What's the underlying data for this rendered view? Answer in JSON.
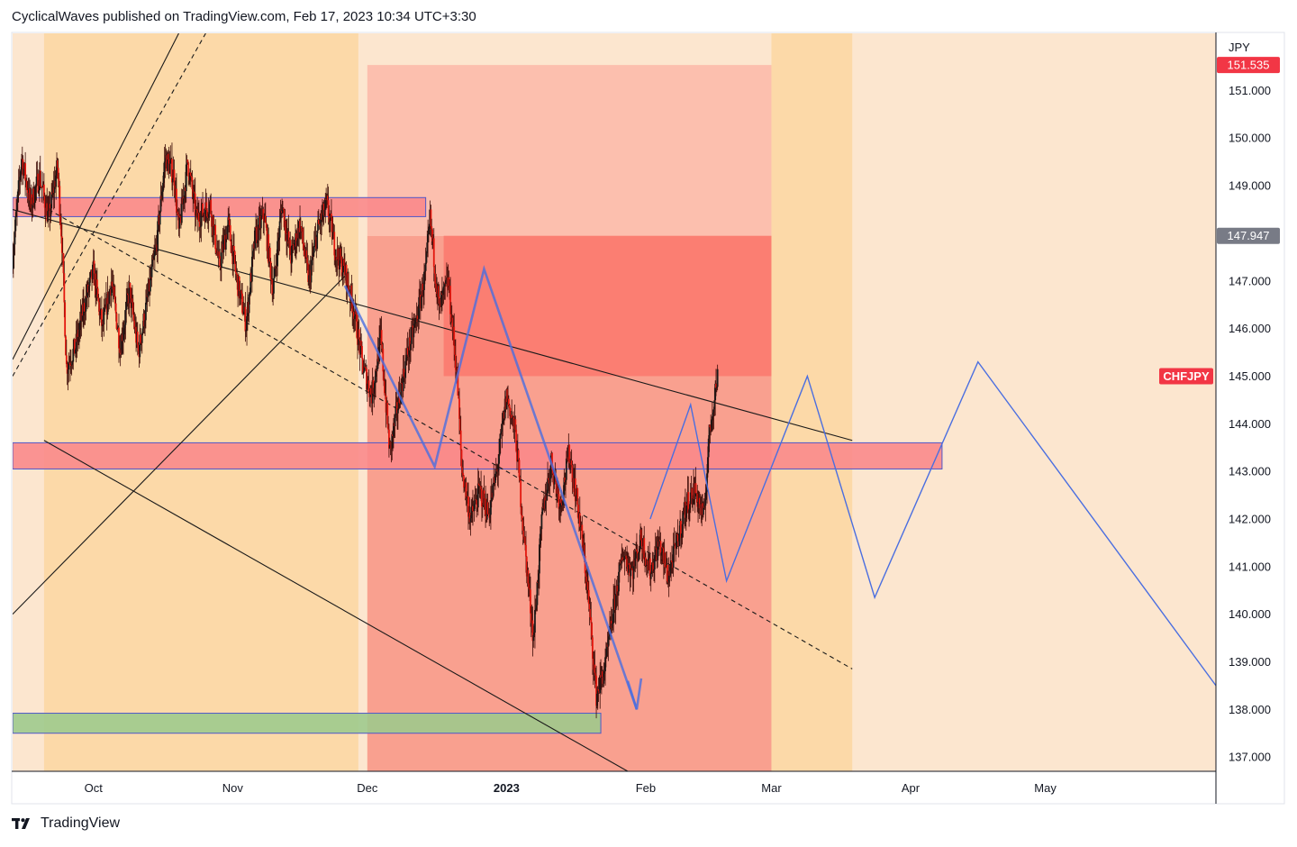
{
  "header": {
    "publisher": "CyclicalWaves",
    "text": "published on TradingView.com, Feb 17, 2023 10:34 UTC+3:30"
  },
  "footer": {
    "brand": "TradingView",
    "logo_icon": "tradingview-logo-icon"
  },
  "colors": {
    "background": "#fce6cf",
    "zone_orange": "#fcd9a8",
    "zone_pink": "#f9a08f",
    "zone_red": "#fb7e72",
    "zone_light_red": "#fcbfae",
    "band_red": "#f9888a",
    "band_green": "#9cc98c",
    "band_border": "#4f57c8",
    "candle": "#e3170e",
    "projection": "#4a6ee0",
    "channel": "#1a1a1a",
    "badge_red": "#f23645",
    "badge_gray": "#787b86"
  },
  "chart_data": {
    "type": "candlestick",
    "symbol": "CHFJPY",
    "currency": "JPY",
    "y_range": [
      136.7,
      152.2
    ],
    "x_range": [
      "2022-09-13",
      "2023-06-08"
    ],
    "y_ticks": [
      "137.000",
      "138.000",
      "139.000",
      "140.000",
      "141.000",
      "142.000",
      "143.000",
      "144.000",
      "145.000",
      "146.000",
      "147.000",
      "148.000",
      "149.000",
      "150.000",
      "151.000"
    ],
    "x_ticks": [
      {
        "label": "Oct",
        "date": "2022-10-01",
        "bold": false
      },
      {
        "label": "Nov",
        "date": "2022-11-01",
        "bold": false
      },
      {
        "label": "Dec",
        "date": "2022-12-01",
        "bold": false
      },
      {
        "label": "2023",
        "date": "2023-01-01",
        "bold": true
      },
      {
        "label": "Feb",
        "date": "2023-02-01",
        "bold": false
      },
      {
        "label": "Mar",
        "date": "2023-03-01",
        "bold": false
      },
      {
        "label": "Apr",
        "date": "2023-04-01",
        "bold": false
      },
      {
        "label": "May",
        "date": "2023-05-01",
        "bold": false
      }
    ],
    "price_badges": [
      {
        "label": "151.535",
        "price": 151.535,
        "style": "red"
      },
      {
        "label": "147.947",
        "price": 147.947,
        "style": "gray"
      },
      {
        "label": "CHFJPY",
        "price": 145.0,
        "style": "symbol"
      }
    ],
    "zones": [
      {
        "from": "2022-09-20",
        "to": "2022-11-29",
        "low": 136.7,
        "high": 152.2,
        "color": "zone_orange"
      },
      {
        "from": "2022-12-01",
        "to": "2023-03-01",
        "low": 136.7,
        "high": 147.947,
        "color": "zone_pink"
      },
      {
        "from": "2022-12-01",
        "to": "2023-03-01",
        "low": 147.947,
        "high": 151.535,
        "color": "zone_light_red"
      },
      {
        "from": "2022-12-18",
        "to": "2023-03-01",
        "low": 145.0,
        "high": 147.947,
        "color": "zone_red"
      },
      {
        "from": "2023-03-01",
        "to": "2023-03-19",
        "low": 136.7,
        "high": 152.2,
        "color": "zone_orange"
      }
    ],
    "bands": [
      {
        "from": "2022-09-13",
        "to": "2022-12-14",
        "low": 148.35,
        "high": 148.75,
        "color": "band_red"
      },
      {
        "from": "2022-09-13",
        "to": "2023-04-08",
        "low": 143.05,
        "high": 143.6,
        "color": "band_red"
      },
      {
        "from": "2022-09-13",
        "to": "2023-01-22",
        "low": 137.5,
        "high": 137.92,
        "color": "band_green"
      }
    ],
    "channel_lines": [
      {
        "from": [
          "2022-09-13",
          148.5
        ],
        "to": [
          "2023-03-19",
          143.65
        ],
        "style": "solid"
      },
      {
        "from": [
          "2022-09-20",
          143.65
        ],
        "to": [
          "2023-01-28",
          136.7
        ],
        "style": "solid"
      },
      {
        "from": [
          "2022-09-13",
          140.0
        ],
        "to": [
          "2022-11-26",
          147.1
        ],
        "style": "solid"
      },
      {
        "from": [
          "2022-09-13",
          145.35
        ],
        "to": [
          "2022-10-20",
          152.2
        ],
        "style": "solid"
      },
      {
        "from": [
          "2022-09-13",
          145.0
        ],
        "to": [
          "2022-10-26",
          152.2
        ],
        "style": "dashed"
      },
      {
        "from": [
          "2022-09-21",
          148.5
        ],
        "to": [
          "2023-03-19",
          138.85
        ],
        "style": "dashed"
      }
    ],
    "projection_path": [
      [
        "2022-11-26",
        146.9
      ],
      [
        "2022-12-16",
        143.1
      ],
      [
        "2022-12-27",
        147.25
      ],
      [
        "2023-01-30",
        138.0
      ]
    ],
    "projection_arrow_head": [
      [
        "2023-01-28",
        138.6
      ],
      [
        "2023-01-30",
        138.0
      ],
      [
        "2023-01-31",
        138.65
      ]
    ],
    "forecast_wave": [
      [
        "2023-02-02",
        142.0
      ],
      [
        "2023-02-11",
        144.4
      ],
      [
        "2023-02-19",
        140.7
      ],
      [
        "2023-03-09",
        145.0
      ],
      [
        "2023-03-24",
        140.35
      ],
      [
        "2023-04-16",
        145.3
      ],
      [
        "2023-06-08",
        138.5
      ]
    ],
    "candle_range": {
      "from": "2022-09-13",
      "to": "2023-02-17"
    },
    "price_path": [
      [
        "2022-09-13",
        147.5
      ],
      [
        "2022-09-15",
        149.6
      ],
      [
        "2022-09-17",
        148.6
      ],
      [
        "2022-09-19",
        149.2
      ],
      [
        "2022-09-21",
        148.3
      ],
      [
        "2022-09-23",
        149.4
      ],
      [
        "2022-09-24",
        147.8
      ],
      [
        "2022-09-25",
        145.2
      ],
      [
        "2022-09-27",
        145.6
      ],
      [
        "2022-09-29",
        146.5
      ],
      [
        "2022-10-01",
        147.2
      ],
      [
        "2022-10-03",
        146.0
      ],
      [
        "2022-10-05",
        147.0
      ],
      [
        "2022-10-07",
        145.6
      ],
      [
        "2022-10-09",
        146.8
      ],
      [
        "2022-10-11",
        145.5
      ],
      [
        "2022-10-13",
        146.6
      ],
      [
        "2022-10-15",
        147.7
      ],
      [
        "2022-10-17",
        149.6
      ],
      [
        "2022-10-19",
        149.2
      ],
      [
        "2022-10-20",
        148.0
      ],
      [
        "2022-10-22",
        149.5
      ],
      [
        "2022-10-24",
        148.3
      ],
      [
        "2022-10-27",
        148.6
      ],
      [
        "2022-10-29",
        147.3
      ],
      [
        "2022-10-31",
        148.2
      ],
      [
        "2022-11-02",
        147.0
      ],
      [
        "2022-11-04",
        146.1
      ],
      [
        "2022-11-06",
        147.9
      ],
      [
        "2022-11-08",
        148.4
      ],
      [
        "2022-11-10",
        146.8
      ],
      [
        "2022-11-12",
        148.6
      ],
      [
        "2022-11-14",
        147.5
      ],
      [
        "2022-11-16",
        148.2
      ],
      [
        "2022-11-18",
        147.0
      ],
      [
        "2022-11-20",
        148.1
      ],
      [
        "2022-11-22",
        148.6
      ],
      [
        "2022-11-24",
        147.6
      ],
      [
        "2022-11-26",
        147.2
      ],
      [
        "2022-11-28",
        146.4
      ],
      [
        "2022-11-30",
        145.2
      ],
      [
        "2022-12-02",
        144.6
      ],
      [
        "2022-12-04",
        145.8
      ],
      [
        "2022-12-06",
        143.4
      ],
      [
        "2022-12-08",
        144.5
      ],
      [
        "2022-12-10",
        145.5
      ],
      [
        "2022-12-12",
        146.2
      ],
      [
        "2022-12-14",
        147.2
      ],
      [
        "2022-12-15",
        148.3
      ],
      [
        "2022-12-17",
        146.4
      ],
      [
        "2022-12-19",
        147.0
      ],
      [
        "2022-12-21",
        145.0
      ],
      [
        "2022-12-22",
        143.1
      ],
      [
        "2022-12-24",
        142.0
      ],
      [
        "2022-12-26",
        142.6
      ],
      [
        "2022-12-28",
        142.1
      ],
      [
        "2022-12-30",
        143.1
      ],
      [
        "2023-01-01",
        144.6
      ],
      [
        "2023-01-03",
        143.8
      ],
      [
        "2023-01-05",
        141.5
      ],
      [
        "2023-01-07",
        139.5
      ],
      [
        "2023-01-09",
        142.1
      ],
      [
        "2023-01-11",
        143.2
      ],
      [
        "2023-01-13",
        142.3
      ],
      [
        "2023-01-15",
        143.4
      ],
      [
        "2023-01-17",
        142.2
      ],
      [
        "2023-01-19",
        140.6
      ],
      [
        "2023-01-21",
        138.3
      ],
      [
        "2023-01-23",
        138.9
      ],
      [
        "2023-01-25",
        140.2
      ],
      [
        "2023-01-27",
        141.3
      ],
      [
        "2023-01-29",
        140.9
      ],
      [
        "2023-01-31",
        141.6
      ],
      [
        "2023-02-02",
        140.9
      ],
      [
        "2023-02-04",
        141.5
      ],
      [
        "2023-02-06",
        140.8
      ],
      [
        "2023-02-08",
        141.5
      ],
      [
        "2023-02-10",
        142.3
      ],
      [
        "2023-02-12",
        142.6
      ],
      [
        "2023-02-14",
        142.0
      ],
      [
        "2023-02-15",
        143.6
      ],
      [
        "2023-02-16",
        144.4
      ],
      [
        "2023-02-17",
        145.0
      ]
    ]
  }
}
